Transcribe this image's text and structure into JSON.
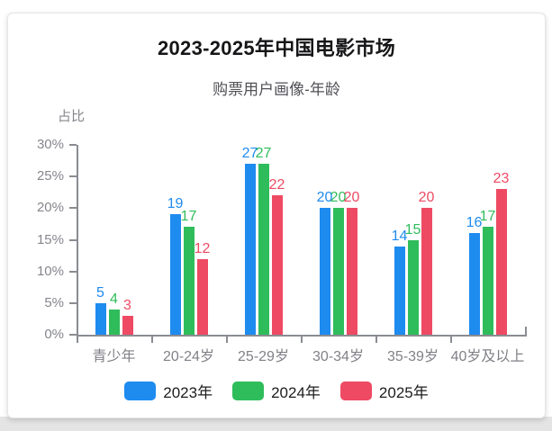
{
  "chart_data": {
    "type": "bar",
    "title": "2023-2025年中国电影市场",
    "subtitle": "购票用户画像-年龄",
    "ylabel": "占比",
    "xlabel": "",
    "categories": [
      "青少年",
      "20-24岁",
      "25-29岁",
      "30-34岁",
      "35-39岁",
      "40岁及以上"
    ],
    "series": [
      {
        "name": "2023年",
        "color": "#1E8BEF",
        "values": [
          5,
          19,
          27,
          20,
          14,
          16
        ]
      },
      {
        "name": "2024年",
        "color": "#2FBD5B",
        "values": [
          4,
          17,
          27,
          20,
          15,
          17
        ]
      },
      {
        "name": "2025年",
        "color": "#EE4A63",
        "values": [
          3,
          12,
          22,
          20,
          20,
          23
        ]
      }
    ],
    "y_ticks": [
      "0%",
      "5%",
      "10%",
      "15%",
      "20%",
      "25%",
      "30%"
    ],
    "ylim": [
      0,
      30
    ],
    "y_tick_step": 5,
    "grid": false,
    "value_labels": true,
    "legend_position": "bottom"
  },
  "colors": {
    "axis": "#8A8C92",
    "axis_label": "#85868C",
    "category_label": "#808187",
    "title": "#161618",
    "subtitle": "#515157",
    "legend_text": "#1D1D1F",
    "card_border": "#E5E5E5",
    "background_strip": "#E4E4E4"
  }
}
